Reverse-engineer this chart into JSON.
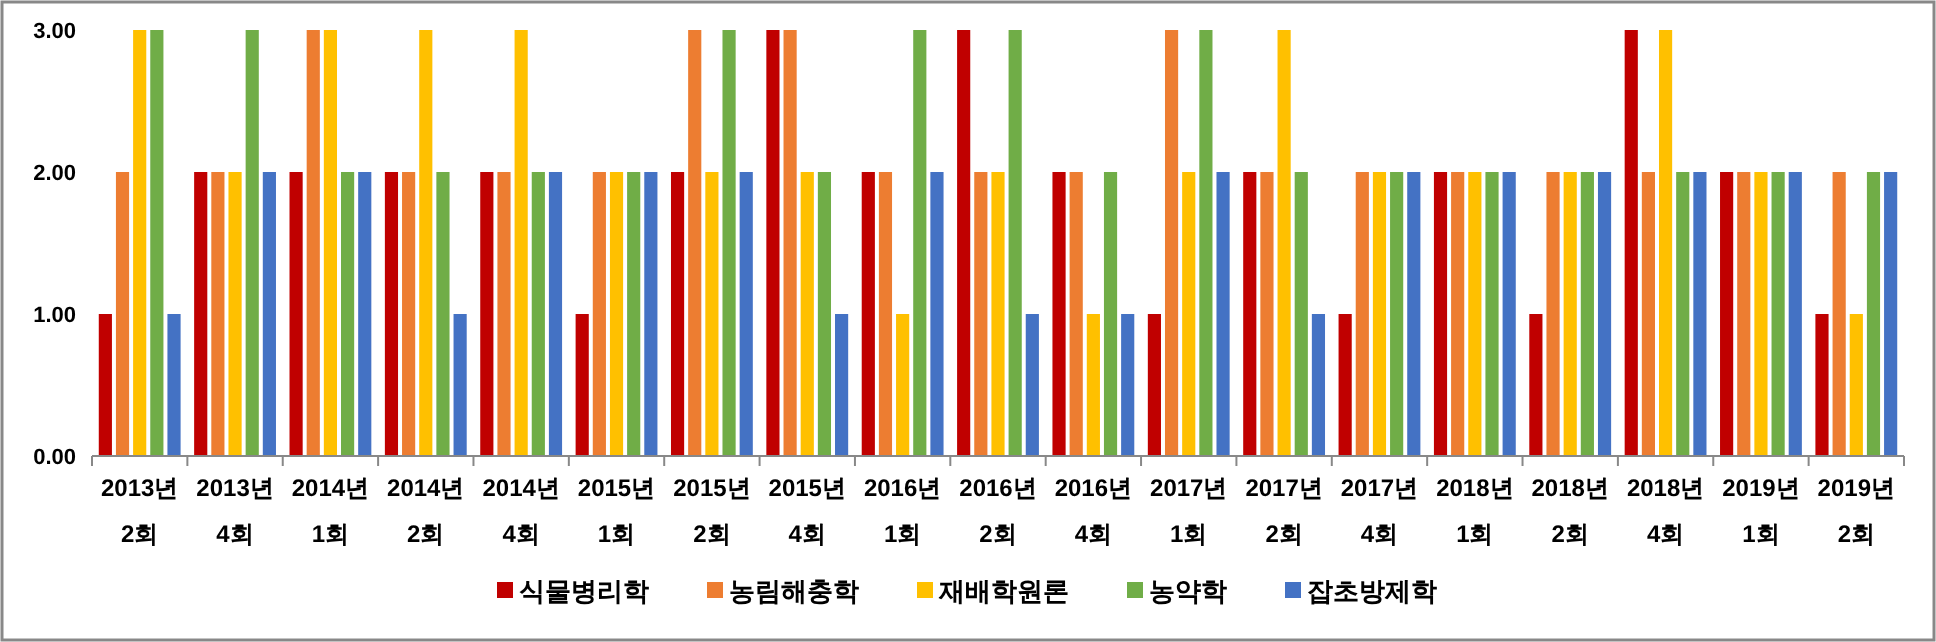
{
  "chart_data": {
    "type": "bar",
    "categories": [
      "2013년\n2회",
      "2013년\n4회",
      "2014년\n1회",
      "2014년\n2회",
      "2014년\n4회",
      "2015년\n1회",
      "2015년\n2회",
      "2015년\n4회",
      "2016년\n1회",
      "2016년\n2회",
      "2016년\n4회",
      "2017년\n1회",
      "2017년\n2회",
      "2017년\n4회",
      "2018년\n1회",
      "2018년\n2회",
      "2018년\n4회",
      "2019년\n1회",
      "2019년\n2회"
    ],
    "series": [
      {
        "name": "식물병리학",
        "color": "#c00000",
        "values": [
          1,
          2,
          2,
          2,
          2,
          1,
          2,
          3,
          2,
          3,
          2,
          1,
          2,
          1,
          2,
          1,
          3,
          2,
          1
        ]
      },
      {
        "name": "농림해충학",
        "color": "#ed7d31",
        "values": [
          2,
          2,
          3,
          2,
          2,
          2,
          3,
          3,
          2,
          2,
          2,
          3,
          2,
          2,
          2,
          2,
          2,
          2,
          2
        ]
      },
      {
        "name": "재배학원론",
        "color": "#ffc000",
        "values": [
          3,
          2,
          3,
          3,
          3,
          2,
          2,
          2,
          1,
          2,
          1,
          2,
          3,
          2,
          2,
          2,
          3,
          2,
          1
        ]
      },
      {
        "name": "농약학",
        "color": "#70ad47",
        "values": [
          3,
          3,
          2,
          2,
          2,
          2,
          3,
          2,
          3,
          3,
          2,
          3,
          2,
          2,
          2,
          2,
          2,
          2,
          2
        ]
      },
      {
        "name": "잡초방제학",
        "color": "#4472c4",
        "values": [
          1,
          2,
          2,
          1,
          2,
          2,
          2,
          1,
          2,
          1,
          1,
          2,
          1,
          2,
          2,
          2,
          2,
          2,
          2
        ]
      }
    ],
    "ylim": [
      0,
      3
    ],
    "yticks": [
      {
        "value": 0,
        "label": "0.00"
      },
      {
        "value": 1,
        "label": "1.00"
      },
      {
        "value": 2,
        "label": "2.00"
      },
      {
        "value": 3,
        "label": "3.00"
      }
    ],
    "grid": false,
    "legend": "bottom"
  }
}
